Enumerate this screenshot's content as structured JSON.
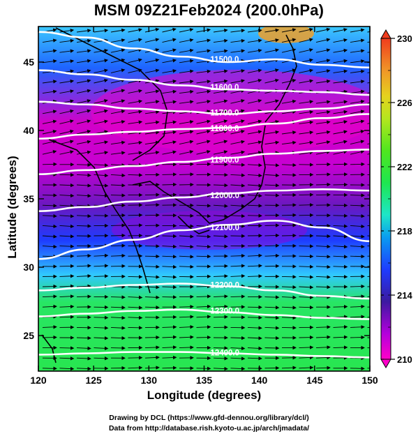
{
  "title": "MSM 09Z21Feb2024 (200.0hPa)",
  "x_axis": {
    "label": "Longitude (degrees)",
    "min": 120,
    "max": 150,
    "ticks": [
      "120",
      "125",
      "130",
      "135",
      "140",
      "145",
      "150"
    ]
  },
  "y_axis": {
    "label": "Latitude  (degrees)",
    "min": 22.4,
    "max": 47.6,
    "ticks": [
      "25",
      "30",
      "35",
      "40",
      "45"
    ]
  },
  "colorbar": {
    "ticks": [
      "230",
      "226",
      "222",
      "218",
      "214",
      "210"
    ],
    "min": 210,
    "max": 230,
    "colors": [
      "#e600c8",
      "#aa00dc",
      "#3a1aa0",
      "#1e3cff",
      "#0a9cf0",
      "#1ee6c8",
      "#1ee650",
      "#50e61e",
      "#a0e61e",
      "#e6e61e",
      "#f0b428",
      "#f07828",
      "#f03c1e"
    ]
  },
  "contours": [
    {
      "label": "11500.0",
      "lat": [
        47.2,
        46.8,
        46.0,
        45.4,
        45.0,
        45.2,
        44.8,
        44.6
      ]
    },
    {
      "label": "11600.0",
      "lat": [
        44.4,
        44.1,
        43.7,
        43.3,
        43.0,
        42.9,
        42.8,
        42.6
      ]
    },
    {
      "label": "11700.0",
      "lat": [
        42.1,
        41.9,
        41.6,
        41.4,
        41.2,
        41.4,
        41.6,
        41.9
      ]
    },
    {
      "label": "11800.0",
      "lat": [
        39.4,
        39.7,
        39.9,
        40.1,
        40.2,
        40.5,
        40.9,
        41.2
      ]
    },
    {
      "label": "11900.0",
      "lat": [
        36.8,
        37.1,
        37.4,
        37.7,
        38.0,
        38.3,
        38.5,
        38.6
      ]
    },
    {
      "label": "12000.0",
      "lat": [
        34.1,
        34.4,
        34.8,
        35.1,
        35.4,
        35.6,
        35.7,
        35.6
      ]
    },
    {
      "label": "12100.0",
      "lat": [
        30.6,
        31.3,
        32.0,
        32.7,
        33.1,
        33.4,
        32.9,
        31.9
      ]
    },
    {
      "label": "12200.0",
      "lat": [
        28.3,
        28.5,
        28.7,
        28.8,
        28.6,
        28.3,
        27.9,
        27.7
      ]
    },
    {
      "label": "12300.0",
      "lat": [
        26.4,
        26.6,
        26.8,
        26.9,
        26.7,
        26.5,
        26.3,
        26.2
      ]
    },
    {
      "label": "12400.0",
      "lat": [
        23.6,
        23.7,
        23.8,
        23.8,
        23.7,
        23.6,
        23.5,
        23.4
      ]
    }
  ],
  "credits": {
    "line1": "Drawing by DCL (https://www.gfd-dennou.org/library/dcl/)",
    "line2": "Data from http://database.rish.kyoto-u.ac.jp/arch/jmadata/"
  }
}
